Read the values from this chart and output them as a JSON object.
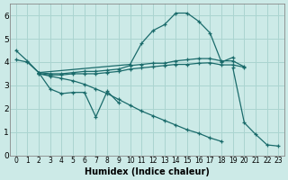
{
  "xlabel": "Humidex (Indice chaleur)",
  "xlim": [
    -0.5,
    23.5
  ],
  "ylim": [
    0,
    6.5
  ],
  "xticks": [
    0,
    1,
    2,
    3,
    4,
    5,
    6,
    7,
    8,
    9,
    10,
    11,
    12,
    13,
    14,
    15,
    16,
    17,
    18,
    19,
    20,
    21,
    22,
    23
  ],
  "yticks": [
    0,
    1,
    2,
    3,
    4,
    5,
    6
  ],
  "background_color": "#cceae7",
  "grid_color": "#aad4d0",
  "line_color": "#1a6b6b",
  "line1_x": [
    0,
    1,
    2,
    3,
    4,
    5,
    6,
    7,
    8,
    9
  ],
  "line1_y": [
    4.5,
    4.05,
    3.55,
    2.85,
    2.65,
    2.7,
    2.7,
    1.65,
    2.75,
    2.25
  ],
  "line2_x": [
    2,
    10,
    11,
    12,
    13,
    14,
    15,
    16,
    17,
    18,
    19
  ],
  "line2_y": [
    3.55,
    3.9,
    4.8,
    5.35,
    5.6,
    6.1,
    6.1,
    5.75,
    5.25,
    4.0,
    4.2
  ],
  "line3_x": [
    0,
    1,
    2,
    3,
    4,
    5,
    6,
    7,
    8,
    9,
    10,
    11,
    12,
    13,
    14,
    15,
    16,
    17,
    18,
    19,
    20
  ],
  "line3_y": [
    4.1,
    4.0,
    3.55,
    3.5,
    3.5,
    3.55,
    3.6,
    3.6,
    3.65,
    3.7,
    3.85,
    3.9,
    3.95,
    3.95,
    4.05,
    4.1,
    4.15,
    4.15,
    4.05,
    4.05,
    3.8
  ],
  "line4_x": [
    2,
    3,
    4,
    5,
    6,
    7,
    8,
    9,
    10,
    11,
    12,
    13,
    14,
    15,
    16,
    17,
    18,
    19,
    20
  ],
  "line4_y": [
    3.5,
    3.45,
    3.45,
    3.5,
    3.5,
    3.5,
    3.55,
    3.6,
    3.7,
    3.75,
    3.8,
    3.85,
    3.9,
    3.9,
    3.95,
    3.97,
    3.88,
    3.88,
    3.78
  ],
  "line5_x": [
    2,
    3,
    4,
    5,
    6,
    7,
    8,
    9,
    10,
    11,
    12,
    13,
    14,
    15,
    16,
    17,
    18,
    19,
    20,
    21,
    22,
    23
  ],
  "line5_y": [
    3.5,
    3.4,
    3.3,
    3.2,
    3.05,
    2.85,
    2.65,
    2.4,
    2.15,
    1.9,
    1.7,
    1.5,
    1.3,
    1.1,
    0.95,
    0.75,
    0.6,
    3.75,
    1.4,
    0.9,
    0.45,
    0.4
  ]
}
